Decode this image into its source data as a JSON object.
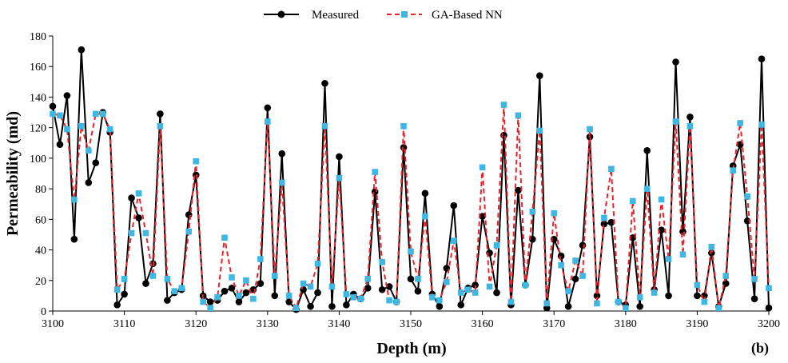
{
  "chart_data": {
    "type": "line",
    "xlabel": "Depth (m)",
    "ylabel": "Permeability (md)",
    "panel_label": "(b)",
    "xlim": [
      3100,
      3200
    ],
    "ylim": [
      0,
      180
    ],
    "xticks": [
      3100,
      3110,
      3120,
      3130,
      3140,
      3150,
      3160,
      3170,
      3180,
      3190,
      3200
    ],
    "yticks": [
      0,
      20,
      40,
      60,
      80,
      100,
      120,
      140,
      160,
      180
    ],
    "grid": false,
    "legend_position": "top-center",
    "series": [
      {
        "name": "Measured",
        "color": "#000000",
        "style": "solid line with circle markers",
        "x": [
          3100,
          3101,
          3102,
          3103,
          3104,
          3105,
          3106,
          3107,
          3108,
          3109,
          3110,
          3111,
          3112,
          3113,
          3114,
          3115,
          3116,
          3117,
          3118,
          3119,
          3120,
          3121,
          3122,
          3123,
          3124,
          3125,
          3126,
          3127,
          3128,
          3129,
          3130,
          3131,
          3132,
          3133,
          3134,
          3135,
          3136,
          3137,
          3138,
          3139,
          3140,
          3141,
          3142,
          3143,
          3144,
          3145,
          3146,
          3147,
          3148,
          3149,
          3150,
          3151,
          3152,
          3153,
          3154,
          3155,
          3156,
          3157,
          3158,
          3159,
          3160,
          3161,
          3162,
          3163,
          3164,
          3165,
          3166,
          3167,
          3168,
          3169,
          3170,
          3171,
          3172,
          3173,
          3174,
          3175,
          3176,
          3177,
          3178,
          3179,
          3180,
          3181,
          3182,
          3183,
          3184,
          3185,
          3186,
          3187,
          3188,
          3189,
          3190,
          3191,
          3192,
          3193,
          3194,
          3195,
          3196,
          3197,
          3198,
          3199,
          3200
        ],
        "y": [
          134,
          109,
          141,
          47,
          171,
          84,
          97,
          130,
          117,
          4,
          11,
          74,
          61,
          18,
          31,
          129,
          7,
          12,
          14,
          63,
          89,
          10,
          6,
          7,
          13,
          15,
          6,
          12,
          14,
          18,
          133,
          10,
          103,
          6,
          1,
          14,
          3,
          12,
          149,
          3,
          101,
          4,
          11,
          8,
          15,
          78,
          14,
          16,
          6,
          107,
          21,
          13,
          77,
          11,
          3,
          28,
          69,
          4,
          15,
          17,
          62,
          38,
          12,
          115,
          4,
          79,
          17,
          47,
          154,
          2,
          47,
          36,
          3,
          21,
          43,
          114,
          10,
          57,
          58,
          6,
          4,
          48,
          3,
          105,
          14,
          53,
          10,
          163,
          52,
          127,
          10,
          10,
          38,
          3,
          18,
          95,
          109,
          59,
          8,
          165,
          2
        ]
      },
      {
        "name": "GA-Based NN",
        "color": "#e8242b",
        "marker_color": "#3fb7e3",
        "style": "dashed line with square markers",
        "x": [
          3100,
          3101,
          3102,
          3103,
          3104,
          3105,
          3106,
          3107,
          3108,
          3109,
          3110,
          3111,
          3112,
          3113,
          3114,
          3115,
          3116,
          3117,
          3118,
          3119,
          3120,
          3121,
          3122,
          3123,
          3124,
          3125,
          3126,
          3127,
          3128,
          3129,
          3130,
          3131,
          3132,
          3133,
          3134,
          3135,
          3136,
          3137,
          3138,
          3139,
          3140,
          3141,
          3142,
          3143,
          3144,
          3145,
          3146,
          3147,
          3148,
          3149,
          3150,
          3151,
          3152,
          3153,
          3154,
          3155,
          3156,
          3157,
          3158,
          3159,
          3160,
          3161,
          3162,
          3163,
          3164,
          3165,
          3166,
          3167,
          3168,
          3169,
          3170,
          3171,
          3172,
          3173,
          3174,
          3175,
          3176,
          3177,
          3178,
          3179,
          3180,
          3181,
          3182,
          3183,
          3184,
          3185,
          3186,
          3187,
          3188,
          3189,
          3190,
          3191,
          3192,
          3193,
          3194,
          3195,
          3196,
          3197,
          3198,
          3199,
          3200
        ],
        "y": [
          129,
          128,
          119,
          73,
          121,
          105,
          129,
          129,
          119,
          14,
          21,
          51,
          77,
          51,
          23,
          121,
          21,
          13,
          15,
          52,
          98,
          6,
          2,
          9,
          48,
          22,
          10,
          20,
          8,
          34,
          124,
          23,
          84,
          10,
          2,
          18,
          16,
          31,
          121,
          16,
          87,
          11,
          9,
          8,
          21,
          91,
          32,
          7,
          6,
          121,
          39,
          21,
          62,
          9,
          7,
          19,
          46,
          12,
          14,
          12,
          94,
          16,
          43,
          135,
          6,
          128,
          17,
          65,
          118,
          5,
          64,
          30,
          13,
          33,
          23,
          119,
          5,
          61,
          93,
          6,
          2,
          72,
          9,
          80,
          12,
          73,
          34,
          124,
          37,
          121,
          17,
          6,
          42,
          2,
          23,
          92,
          123,
          75,
          21,
          122,
          15
        ]
      }
    ]
  }
}
